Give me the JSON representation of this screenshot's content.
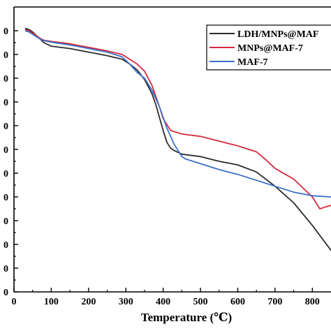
{
  "chart_data": {
    "type": "line",
    "title": "",
    "xlabel": "Temperature (℃)",
    "ylabel": "",
    "xlim": [
      0,
      850
    ],
    "ylim": [
      -100,
      1100
    ],
    "x_ticks": [
      0,
      100,
      200,
      300,
      400,
      500,
      600,
      700,
      800
    ],
    "y_tick_labels_visible": [
      "0",
      "0",
      "0",
      "0",
      "0",
      "0",
      "0",
      "0",
      "0",
      "0",
      "0",
      "0"
    ],
    "grid": false,
    "legend_position": "top-right",
    "series": [
      {
        "name": "LDH/MNPs@MAF",
        "color": "#2b2b2b",
        "x": [
          30,
          40,
          50,
          60,
          70,
          80,
          100,
          150,
          200,
          250,
          290,
          310,
          330,
          350,
          370,
          380,
          400,
          410,
          420,
          430,
          450,
          500,
          550,
          600,
          650,
          700,
          750,
          800,
          850
        ],
        "y": [
          1010,
          1005,
          995,
          980,
          965,
          950,
          935,
          925,
          910,
          895,
          880,
          860,
          835,
          795,
          735,
          690,
          580,
          530,
          505,
          495,
          480,
          470,
          450,
          435,
          405,
          345,
          275,
          180,
          75
        ]
      },
      {
        "name": "MNPs@MAF-7",
        "color": "#d42a3c",
        "x": [
          30,
          40,
          50,
          60,
          70,
          80,
          100,
          150,
          200,
          250,
          290,
          310,
          330,
          350,
          370,
          390,
          400,
          420,
          440,
          450,
          500,
          550,
          600,
          650,
          680,
          700,
          750,
          800,
          820,
          830,
          850
        ],
        "y": [
          1005,
          1000,
          990,
          980,
          968,
          960,
          955,
          945,
          930,
          915,
          900,
          880,
          860,
          830,
          770,
          680,
          630,
          580,
          570,
          565,
          555,
          535,
          515,
          490,
          450,
          420,
          375,
          300,
          250,
          255,
          265
        ]
      },
      {
        "name": "MAF-7",
        "color": "#3a70c8",
        "x": [
          30,
          40,
          50,
          60,
          70,
          80,
          100,
          150,
          200,
          250,
          290,
          310,
          330,
          350,
          370,
          390,
          410,
          430,
          450,
          460,
          500,
          550,
          600,
          650,
          700,
          750,
          800,
          850
        ],
        "y": [
          1000,
          995,
          985,
          975,
          965,
          958,
          952,
          940,
          925,
          910,
          890,
          860,
          825,
          800,
          750,
          680,
          590,
          520,
          470,
          460,
          440,
          415,
          395,
          370,
          345,
          320,
          305,
          300
        ]
      }
    ]
  }
}
